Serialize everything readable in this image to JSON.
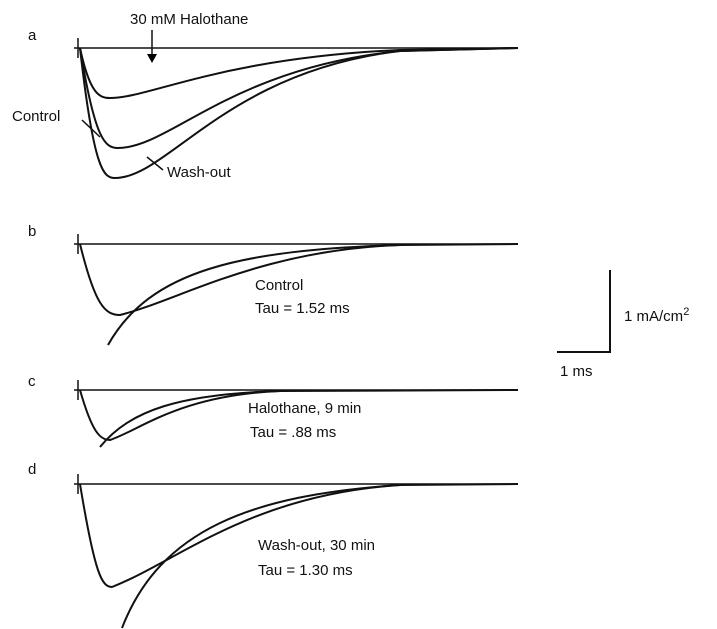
{
  "panels": [
    {
      "letter": "a",
      "labels": [
        "30 mM Halothane",
        "Control",
        "Wash-out"
      ]
    },
    {
      "letter": "b",
      "labels": [
        "Control",
        "Tau = 1.52 ms"
      ]
    },
    {
      "letter": "c",
      "labels": [
        "Halothane, 9 min",
        "Tau = .88 ms"
      ]
    },
    {
      "letter": "d",
      "labels": [
        "Wash-out, 30 min",
        "Tau = 1.30 ms"
      ]
    }
  ],
  "scale_bar": {
    "vertical_label": "1 mA/cm",
    "vertical_label_exponent": "2",
    "horizontal_label": "1 ms"
  }
}
